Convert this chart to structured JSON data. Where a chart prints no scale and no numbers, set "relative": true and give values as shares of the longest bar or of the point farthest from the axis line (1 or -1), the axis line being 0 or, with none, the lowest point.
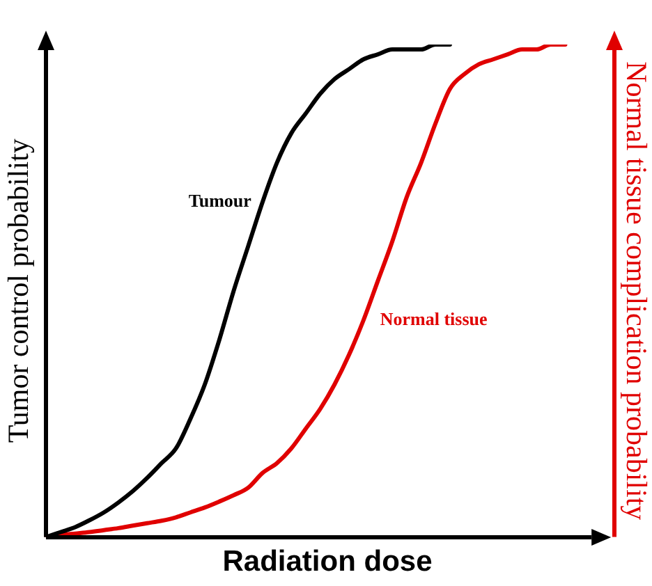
{
  "chart_data": {
    "type": "line",
    "relative": true,
    "xlabel": "Radiation dose",
    "ylabel": "Tumor control probability",
    "y2label": "Normal tissue complication probability",
    "categories": [
      null,
      null,
      null,
      null,
      null,
      null,
      null,
      null,
      null,
      null,
      null,
      null,
      null,
      null,
      null,
      null,
      null,
      null,
      null,
      null,
      null,
      null,
      null,
      null,
      null,
      null,
      null,
      null,
      null,
      null,
      null,
      null,
      null,
      null,
      null,
      null,
      null,
      null,
      null,
      null
    ],
    "series": [
      {
        "name": "Tumour",
        "color": "#000000",
        "values": [
          0,
          0.01,
          0.02,
          0.034,
          0.05,
          0.07,
          0.093,
          0.12,
          0.15,
          0.18,
          0.24,
          0.31,
          0.4,
          0.5,
          0.59,
          0.68,
          0.76,
          0.82,
          0.86,
          0.9,
          0.93,
          0.95,
          0.97,
          0.98,
          0.99,
          0.99,
          0.99,
          1,
          1,
          null,
          null,
          null,
          null,
          null,
          null,
          null,
          null,
          null,
          null,
          null
        ]
      },
      {
        "name": "Normal tissue",
        "color": "#e00000",
        "values": [
          0,
          0.004,
          0.007,
          0.01,
          0.014,
          0.018,
          0.023,
          0.028,
          0.033,
          0.04,
          0.05,
          0.06,
          0.072,
          0.085,
          0.1,
          0.13,
          0.15,
          0.18,
          0.22,
          0.26,
          0.31,
          0.37,
          0.44,
          0.52,
          0.6,
          0.69,
          0.76,
          0.84,
          0.91,
          0.94,
          0.96,
          0.97,
          0.98,
          0.99,
          0.99,
          1,
          1,
          null,
          null,
          null
        ]
      }
    ],
    "legend": false,
    "grid": false,
    "marker": "none",
    "line_style": "solid"
  }
}
